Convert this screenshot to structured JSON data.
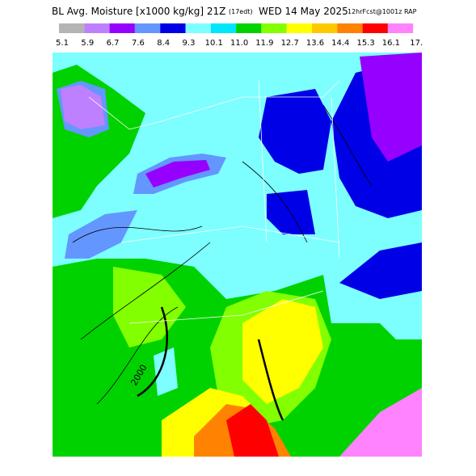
{
  "header": {
    "title": "BL Avg. Moisture [x1000 kg/kg] 21Z",
    "local_time": "(17edt)",
    "date": "WED 14 May 2025",
    "forecast": "12hrFcst@1001z RAP"
  },
  "colorbar": {
    "labels": [
      "5.1",
      "5.9",
      "6.7",
      "7.6",
      "8.4",
      "9.3",
      "10.1",
      "11.0",
      "11.9",
      "12.7",
      "13.6",
      "14.4",
      "15.3",
      "16.1",
      "17."
    ],
    "colors": [
      "#b4b4b4",
      "#bf80ff",
      "#9600ff",
      "#6496ff",
      "#0000e6",
      "#7dffff",
      "#00e6ff",
      "#00d200",
      "#82ff00",
      "#ffff00",
      "#ffc800",
      "#ff8200",
      "#ff0000",
      "#ff82ff"
    ]
  },
  "contour_label": "2000"
}
